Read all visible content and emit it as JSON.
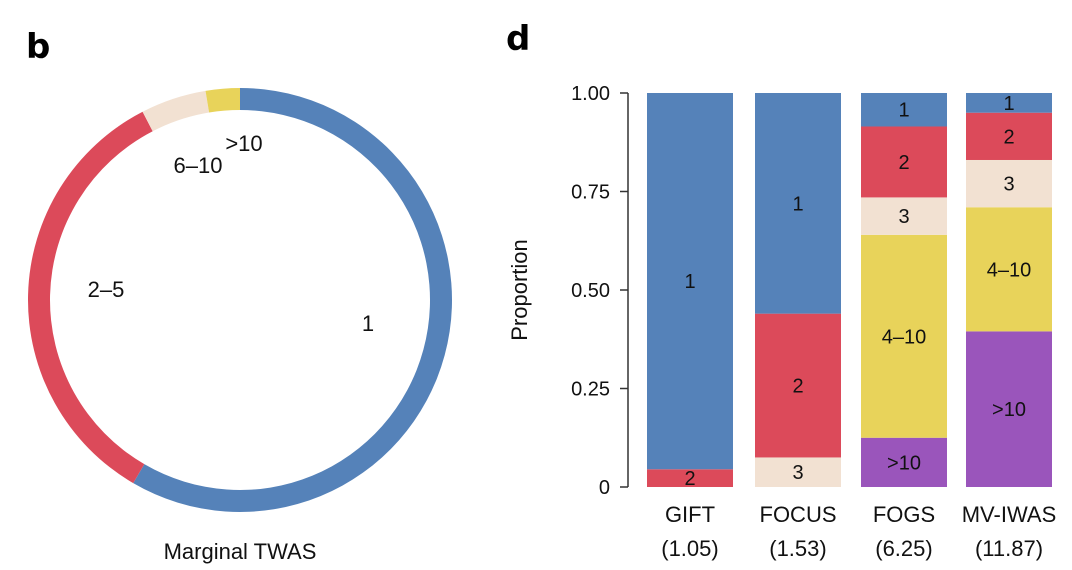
{
  "colors": {
    "blue": "#5582b9",
    "red": "#dc4a5a",
    "beige": "#f2e1d2",
    "yellow": "#e8d35a",
    "purple": "#9a55bb"
  },
  "panel_b": {
    "letter": "b",
    "caption": "Marginal TWAS"
  },
  "panel_d": {
    "letter": "d",
    "ylabel": "Proportion"
  },
  "chart_data": [
    {
      "type": "pie",
      "variant": "donut",
      "caption": "Marginal TWAS",
      "slices": [
        {
          "label": "1",
          "value": 0.584,
          "color": "blue"
        },
        {
          "label": "2–5",
          "value": 0.34,
          "color": "red"
        },
        {
          "label": "6–10",
          "value": 0.05,
          "color": "beige"
        },
        {
          "label": ">10",
          "value": 0.026,
          "color": "yellow"
        }
      ]
    },
    {
      "type": "bar",
      "stacked": true,
      "ylabel": "Proportion",
      "ylim": [
        0,
        1
      ],
      "yticks": [
        "0",
        "0.25",
        "0.50",
        "0.75",
        "1.00"
      ],
      "categories": [
        {
          "name": "GIFT",
          "sub": "(1.05)"
        },
        {
          "name": "FOCUS",
          "sub": "(1.53)"
        },
        {
          "name": "FOGS",
          "sub": "(6.25)"
        },
        {
          "name": "MV-IWAS",
          "sub": "(11.87)"
        }
      ],
      "bars": [
        [
          {
            "label": "2",
            "value": 0.045,
            "color": "red"
          },
          {
            "label": "1",
            "value": 0.955,
            "color": "blue"
          }
        ],
        [
          {
            "label": "3",
            "value": 0.075,
            "color": "beige"
          },
          {
            "label": "2",
            "value": 0.365,
            "color": "red"
          },
          {
            "label": "1",
            "value": 0.56,
            "color": "blue"
          }
        ],
        [
          {
            "label": ">10",
            "value": 0.125,
            "color": "purple"
          },
          {
            "label": "4–10",
            "value": 0.515,
            "color": "yellow"
          },
          {
            "label": "3",
            "value": 0.095,
            "color": "beige"
          },
          {
            "label": "2",
            "value": 0.18,
            "color": "red"
          },
          {
            "label": "1",
            "value": 0.085,
            "color": "blue"
          }
        ],
        [
          {
            "label": ">10",
            "value": 0.395,
            "color": "purple"
          },
          {
            "label": "4–10",
            "value": 0.315,
            "color": "yellow"
          },
          {
            "label": "3",
            "value": 0.12,
            "color": "beige"
          },
          {
            "label": "2",
            "value": 0.12,
            "color": "red"
          },
          {
            "label": "1",
            "value": 0.05,
            "color": "blue"
          }
        ]
      ]
    }
  ]
}
